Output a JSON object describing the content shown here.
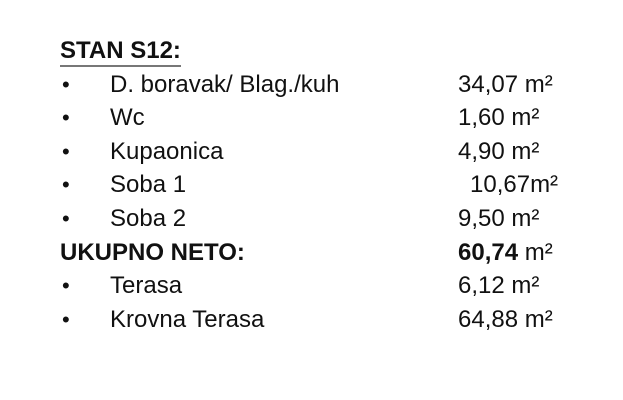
{
  "title": "STAN S12:",
  "items": [
    {
      "label": "D. boravak/ Blag./kuh",
      "value": "34,07",
      "unit": "m²"
    },
    {
      "label": "Wc",
      "value": "1,60",
      "unit": "m²"
    },
    {
      "label": "Kupaonica",
      "value": "4,90",
      "unit": "m²"
    },
    {
      "label": "Soba 1",
      "value": " 10,67",
      "unit": "m²"
    },
    {
      "label": "Soba 2",
      "value": "9,50",
      "unit": "m²"
    }
  ],
  "total": {
    "label": "UKUPNO NETO:",
    "value": "60,74",
    "unit": "m²"
  },
  "extras": [
    {
      "label": "Terasa",
      "value": "6,12",
      "unit": "m²"
    },
    {
      "label": "Krovna Terasa",
      "value": "64,88",
      "unit": "m²"
    }
  ],
  "bullet": "•"
}
